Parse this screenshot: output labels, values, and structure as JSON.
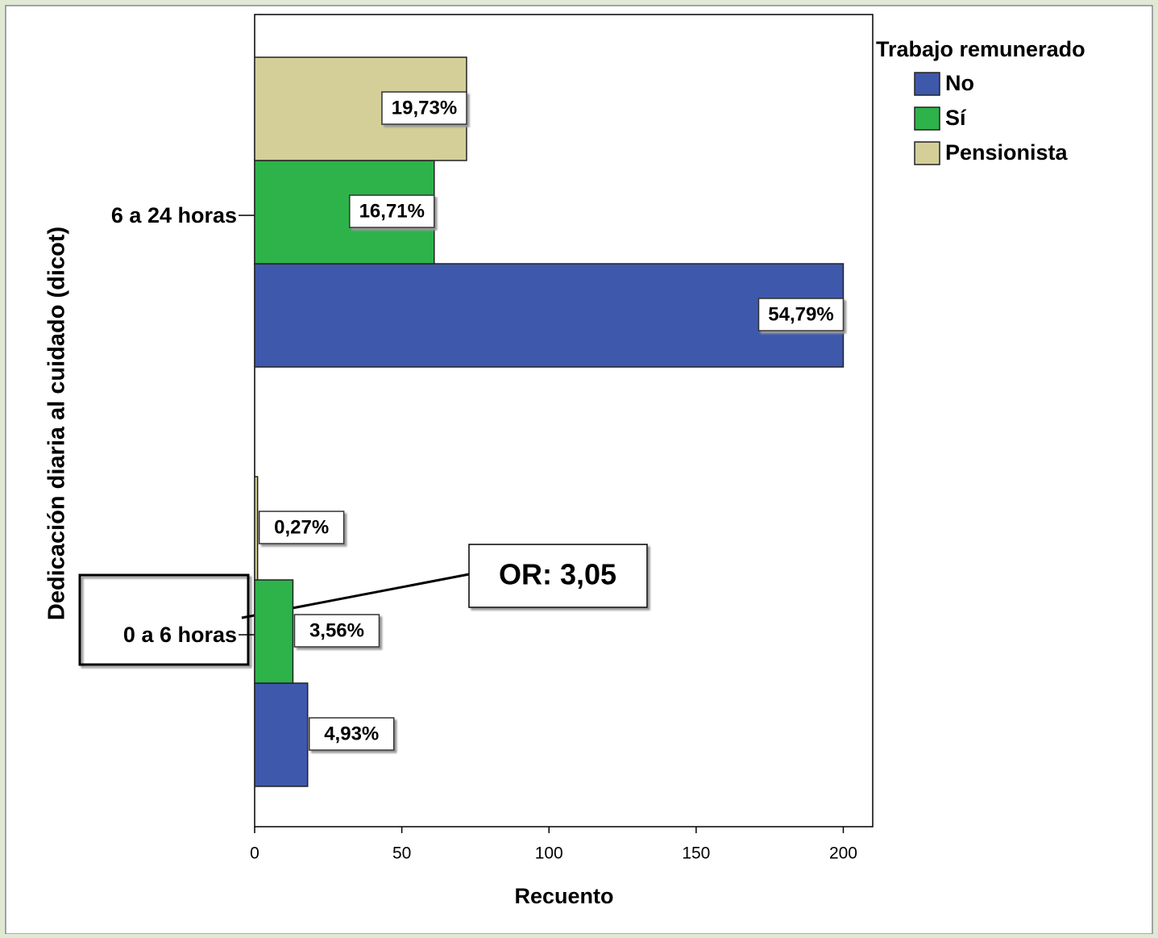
{
  "chart_data": {
    "type": "barh",
    "y_label": "Dedicación diaria al cuidado (dicot)",
    "x_label": "Recuento",
    "categories": [
      "6 a 24 horas",
      "0 a 6 horas"
    ],
    "legend_title": "Trabajo remunerado",
    "legend_position": "upper right",
    "series": [
      {
        "name": "No",
        "color": "#3e58ac",
        "values": [
          200,
          18
        ],
        "percent_labels": [
          "54,79%",
          "4,93%"
        ]
      },
      {
        "name": "Sí",
        "color": "#2db34a",
        "values": [
          61,
          13
        ],
        "percent_labels": [
          "16,71%",
          "3,56%"
        ]
      },
      {
        "name": "Pensionista",
        "color": "#d4cf99",
        "values": [
          72,
          1
        ],
        "percent_labels": [
          "19,73%",
          "0,27%"
        ]
      }
    ],
    "xlim": [
      0,
      210
    ],
    "xticks": [
      0,
      50,
      100,
      150,
      200
    ],
    "annotation": "OR: 3,05"
  }
}
